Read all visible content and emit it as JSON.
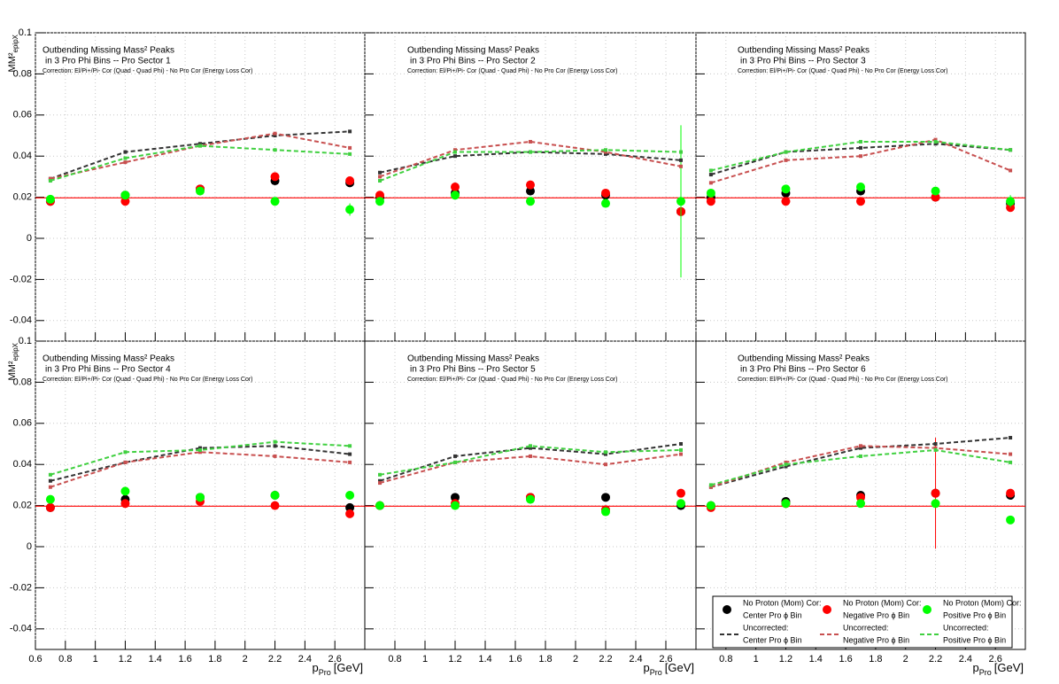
{
  "chart_data": [
    {
      "type": "scatter",
      "title": "Outbending Missing Mass² Peaks",
      "subtitle": "in 3 Pro Phi Bins -- Pro Sector 1",
      "note": "Correction: El/Pi+/Pi- Cor (Quad - Quad Phi) - No Pro Cor (Energy Loss Cor)",
      "ylabel": "MM²",
      "ylabel_sub": "epipX",
      "x": [
        0.7,
        1.2,
        1.7,
        2.2,
        2.7
      ],
      "xlim": [
        0.6,
        2.8
      ],
      "ylim": [
        -0.05,
        0.1
      ],
      "xticks": [
        0.6,
        0.8,
        1,
        1.2,
        1.4,
        1.6,
        1.8,
        2,
        2.2,
        2.4,
        2.6
      ],
      "yticks": [
        -0.04,
        -0.02,
        0,
        0.02,
        0.04,
        0.06,
        0.08,
        0.1
      ],
      "grid": true,
      "hline": {
        "value": 0.0197,
        "color": "#ff0000"
      },
      "series": [
        {
          "style": "points",
          "color": "#000000",
          "values": [
            0.018,
            0.021,
            0.024,
            0.028,
            0.027
          ],
          "errors": [
            0.001,
            0.001,
            0.001,
            0.0015,
            0.002
          ]
        },
        {
          "style": "points",
          "color": "#ff0000",
          "values": [
            0.018,
            0.018,
            0.024,
            0.03,
            0.028
          ],
          "errors": [
            0.001,
            0.001,
            0.001,
            0.0015,
            0.002
          ]
        },
        {
          "style": "points",
          "color": "#00ff00",
          "values": [
            0.019,
            0.021,
            0.023,
            0.018,
            0.014
          ],
          "errors": [
            0.001,
            0.001,
            0.001,
            0.0015,
            0.003
          ]
        },
        {
          "style": "dashed",
          "color": "#333333",
          "values": [
            0.029,
            0.042,
            0.046,
            0.05,
            0.052
          ]
        },
        {
          "style": "dashed",
          "color": "#c85050",
          "values": [
            0.029,
            0.037,
            0.045,
            0.051,
            0.044
          ]
        },
        {
          "style": "dashed",
          "color": "#40d040",
          "values": [
            0.028,
            0.039,
            0.045,
            0.043,
            0.041
          ]
        }
      ]
    },
    {
      "type": "scatter",
      "title": "Outbending Missing Mass² Peaks",
      "subtitle": "in 3 Pro Phi Bins -- Pro Sector 2",
      "note": "Correction: El/Pi+/Pi- Cor (Quad - Quad Phi) - No Pro Cor (Energy Loss Cor)",
      "x": [
        0.7,
        1.2,
        1.7,
        2.2,
        2.7
      ],
      "xlim": [
        0.6,
        2.8
      ],
      "ylim": [
        -0.05,
        0.1
      ],
      "xticks": [
        0.6,
        0.8,
        1,
        1.2,
        1.4,
        1.6,
        1.8,
        2,
        2.2,
        2.4,
        2.6
      ],
      "yticks": [
        -0.04,
        -0.02,
        0,
        0.02,
        0.04,
        0.06,
        0.08,
        0.1
      ],
      "grid": true,
      "hline": {
        "value": 0.0197,
        "color": "#ff0000"
      },
      "series": [
        {
          "style": "points",
          "color": "#000000",
          "values": [
            0.02,
            0.022,
            0.023,
            0.021,
            0.013
          ],
          "errors": [
            0.001,
            0.001,
            0.001,
            0.001,
            0.002
          ]
        },
        {
          "style": "points",
          "color": "#ff0000",
          "values": [
            0.021,
            0.025,
            0.026,
            0.022,
            0.013
          ],
          "errors": [
            0.001,
            0.001,
            0.001,
            0.001,
            0.002
          ]
        },
        {
          "style": "points",
          "color": "#00ff00",
          "values": [
            0.018,
            0.021,
            0.018,
            0.017,
            0.018
          ],
          "errors": [
            0.001,
            0.001,
            0.001,
            0.001,
            0.037
          ]
        },
        {
          "style": "dashed",
          "color": "#333333",
          "values": [
            0.032,
            0.04,
            0.042,
            0.041,
            0.038
          ]
        },
        {
          "style": "dashed",
          "color": "#c85050",
          "values": [
            0.03,
            0.043,
            0.047,
            0.042,
            0.035
          ]
        },
        {
          "style": "dashed",
          "color": "#40d040",
          "values": [
            0.028,
            0.042,
            0.042,
            0.043,
            0.042
          ]
        }
      ]
    },
    {
      "type": "scatter",
      "title": "Outbending Missing Mass² Peaks",
      "subtitle": "in 3 Pro Phi Bins -- Pro Sector 3",
      "note": "Correction: El/Pi+/Pi- Cor (Quad - Quad Phi) - No Pro Cor (Energy Loss Cor)",
      "x": [
        0.7,
        1.2,
        1.7,
        2.2,
        2.7
      ],
      "xlim": [
        0.6,
        2.8
      ],
      "ylim": [
        -0.05,
        0.1
      ],
      "xticks": [
        0.6,
        0.8,
        1,
        1.2,
        1.4,
        1.6,
        1.8,
        2,
        2.2,
        2.4,
        2.6
      ],
      "yticks": [
        -0.04,
        -0.02,
        0,
        0.02,
        0.04,
        0.06,
        0.08,
        0.1
      ],
      "grid": true,
      "hline": {
        "value": 0.0197,
        "color": "#ff0000"
      },
      "series": [
        {
          "style": "points",
          "color": "#000000",
          "values": [
            0.02,
            0.022,
            0.023,
            0.02,
            0.017
          ],
          "errors": [
            0.001,
            0.001,
            0.001,
            0.001,
            0.002
          ]
        },
        {
          "style": "points",
          "color": "#ff0000",
          "values": [
            0.018,
            0.018,
            0.018,
            0.02,
            0.015
          ],
          "errors": [
            0.001,
            0.001,
            0.001,
            0.001,
            0.002
          ]
        },
        {
          "style": "points",
          "color": "#00ff00",
          "values": [
            0.022,
            0.024,
            0.025,
            0.023,
            0.018
          ],
          "errors": [
            0.001,
            0.001,
            0.001,
            0.001,
            0.003
          ]
        },
        {
          "style": "dashed",
          "color": "#333333",
          "values": [
            0.031,
            0.042,
            0.044,
            0.046,
            0.043
          ]
        },
        {
          "style": "dashed",
          "color": "#c85050",
          "values": [
            0.027,
            0.038,
            0.04,
            0.048,
            0.033
          ]
        },
        {
          "style": "dashed",
          "color": "#40d040",
          "values": [
            0.033,
            0.042,
            0.047,
            0.047,
            0.043
          ]
        }
      ]
    },
    {
      "type": "scatter",
      "title": "Outbending Missing Mass² Peaks",
      "subtitle": "in 3 Pro Phi Bins -- Pro Sector 4",
      "note": "Correction: El/Pi+/Pi- Cor (Quad - Quad Phi) - No Pro Cor (Energy Loss Cor)",
      "ylabel": "MM²",
      "ylabel_sub": "epipX",
      "xlabel": "p",
      "xlabel_sub": "Pro",
      "xlabel_unit": "[GeV]",
      "x": [
        0.7,
        1.2,
        1.7,
        2.2,
        2.7
      ],
      "xlim": [
        0.6,
        2.8
      ],
      "ylim": [
        -0.05,
        0.1
      ],
      "xticks": [
        0.6,
        0.8,
        1,
        1.2,
        1.4,
        1.6,
        1.8,
        2,
        2.2,
        2.4,
        2.6
      ],
      "yticks": [
        -0.04,
        -0.02,
        0,
        0.02,
        0.04,
        0.06,
        0.08,
        0.1
      ],
      "grid": true,
      "hline": {
        "value": 0.0197,
        "color": "#ff0000"
      },
      "series": [
        {
          "style": "points",
          "color": "#000000",
          "values": [
            0.019,
            0.023,
            0.024,
            0.025,
            0.019
          ],
          "errors": [
            0.001,
            0.001,
            0.001,
            0.001,
            0.002
          ]
        },
        {
          "style": "points",
          "color": "#ff0000",
          "values": [
            0.019,
            0.021,
            0.022,
            0.02,
            0.016
          ],
          "errors": [
            0.001,
            0.001,
            0.001,
            0.001,
            0.002
          ]
        },
        {
          "style": "points",
          "color": "#00ff00",
          "values": [
            0.023,
            0.027,
            0.024,
            0.025,
            0.025
          ],
          "errors": [
            0.001,
            0.001,
            0.001,
            0.001,
            0.002
          ]
        },
        {
          "style": "dashed",
          "color": "#333333",
          "values": [
            0.032,
            0.041,
            0.048,
            0.049,
            0.045
          ]
        },
        {
          "style": "dashed",
          "color": "#c85050",
          "values": [
            0.029,
            0.041,
            0.046,
            0.044,
            0.041
          ]
        },
        {
          "style": "dashed",
          "color": "#40d040",
          "values": [
            0.035,
            0.046,
            0.047,
            0.051,
            0.049
          ]
        }
      ]
    },
    {
      "type": "scatter",
      "title": "Outbending Missing Mass² Peaks",
      "subtitle": "in 3 Pro Phi Bins -- Pro Sector 5",
      "note": "Correction: El/Pi+/Pi- Cor (Quad - Quad Phi) - No Pro Cor (Energy Loss Cor)",
      "xlabel": "p",
      "xlabel_sub": "Pro",
      "xlabel_unit": "[GeV]",
      "x": [
        0.7,
        1.2,
        1.7,
        2.2,
        2.7
      ],
      "xlim": [
        0.6,
        2.8
      ],
      "ylim": [
        -0.05,
        0.1
      ],
      "xticks": [
        0.8,
        1,
        1.2,
        1.4,
        1.6,
        1.8,
        2,
        2.2,
        2.4,
        2.6
      ],
      "yticks": [
        -0.04,
        -0.02,
        0,
        0.02,
        0.04,
        0.06,
        0.08,
        0.1
      ],
      "grid": true,
      "hline": {
        "value": 0.0197,
        "color": "#ff0000"
      },
      "series": [
        {
          "style": "points",
          "color": "#000000",
          "values": [
            0.02,
            0.024,
            0.024,
            0.024,
            0.02
          ],
          "errors": [
            0.001,
            0.001,
            0.001,
            0.001,
            0.002
          ]
        },
        {
          "style": "points",
          "color": "#ff0000",
          "values": [
            0.02,
            0.021,
            0.024,
            0.018,
            0.026
          ],
          "errors": [
            0.001,
            0.001,
            0.001,
            0.001,
            0.002
          ]
        },
        {
          "style": "points",
          "color": "#00ff00",
          "values": [
            0.02,
            0.02,
            0.023,
            0.017,
            0.021
          ],
          "errors": [
            0.001,
            0.001,
            0.001,
            0.001,
            0.002
          ]
        },
        {
          "style": "dashed",
          "color": "#333333",
          "values": [
            0.032,
            0.044,
            0.048,
            0.045,
            0.05
          ]
        },
        {
          "style": "dashed",
          "color": "#c85050",
          "values": [
            0.031,
            0.041,
            0.044,
            0.04,
            0.045
          ]
        },
        {
          "style": "dashed",
          "color": "#40d040",
          "values": [
            0.035,
            0.041,
            0.049,
            0.046,
            0.047
          ]
        }
      ]
    },
    {
      "type": "scatter",
      "title": "Outbending Missing Mass² Peaks",
      "subtitle": "in 3 Pro Phi Bins -- Pro Sector 6",
      "note": "Correction: El/Pi+/Pi- Cor (Quad - Quad Phi) - No Pro Cor (Energy Loss Cor)",
      "xlabel": "p",
      "xlabel_sub": "Pro",
      "xlabel_unit": "[GeV]",
      "x": [
        0.7,
        1.2,
        1.7,
        2.2,
        2.7
      ],
      "xlim": [
        0.6,
        2.8
      ],
      "ylim": [
        -0.05,
        0.1
      ],
      "xticks": [
        0.8,
        1,
        1.2,
        1.4,
        1.6,
        1.8,
        2,
        2.2,
        2.4,
        2.6
      ],
      "yticks": [
        -0.04,
        -0.02,
        0,
        0.02,
        0.04,
        0.06,
        0.08,
        0.1
      ],
      "grid": true,
      "hline": {
        "value": 0.0197,
        "color": "#ff0000"
      },
      "series": [
        {
          "style": "points",
          "color": "#000000",
          "values": [
            0.02,
            0.022,
            0.025,
            0.026,
            0.025
          ],
          "errors": [
            0.001,
            0.001,
            0.001,
            0.002,
            0.002
          ]
        },
        {
          "style": "points",
          "color": "#ff0000",
          "values": [
            0.019,
            0.021,
            0.024,
            0.026,
            0.026
          ],
          "errors": [
            0.001,
            0.001,
            0.001,
            0.027,
            0.002
          ]
        },
        {
          "style": "points",
          "color": "#00ff00",
          "values": [
            0.02,
            0.021,
            0.021,
            0.021,
            0.013
          ],
          "errors": [
            0.001,
            0.001,
            0.001,
            0.001,
            0.002
          ]
        },
        {
          "style": "dashed",
          "color": "#333333",
          "values": [
            0.029,
            0.039,
            0.048,
            0.05,
            0.053
          ]
        },
        {
          "style": "dashed",
          "color": "#c85050",
          "values": [
            0.029,
            0.041,
            0.049,
            0.048,
            0.045
          ]
        },
        {
          "style": "dashed",
          "color": "#40d040",
          "values": [
            0.03,
            0.04,
            0.044,
            0.047,
            0.041
          ]
        }
      ],
      "legend": [
        {
          "title": "No Proton (Mom) Cor:",
          "label": "Center Pro   ϕ Bin"
        },
        {
          "title": "No Proton (Mom) Cor:",
          "label": "Negative Pro   ϕ Bin"
        },
        {
          "title": "No Proton (Mom) Cor:",
          "label": "Positive Pro   ϕ Bin"
        },
        {
          "title": "Uncorrected:",
          "label": "Center Pro   ϕ Bin"
        },
        {
          "title": "Uncorrected:",
          "label": "Negative Pro   ϕ Bin"
        },
        {
          "title": "Uncorrected:",
          "label": "Positive Pro   ϕ Bin"
        }
      ]
    }
  ]
}
